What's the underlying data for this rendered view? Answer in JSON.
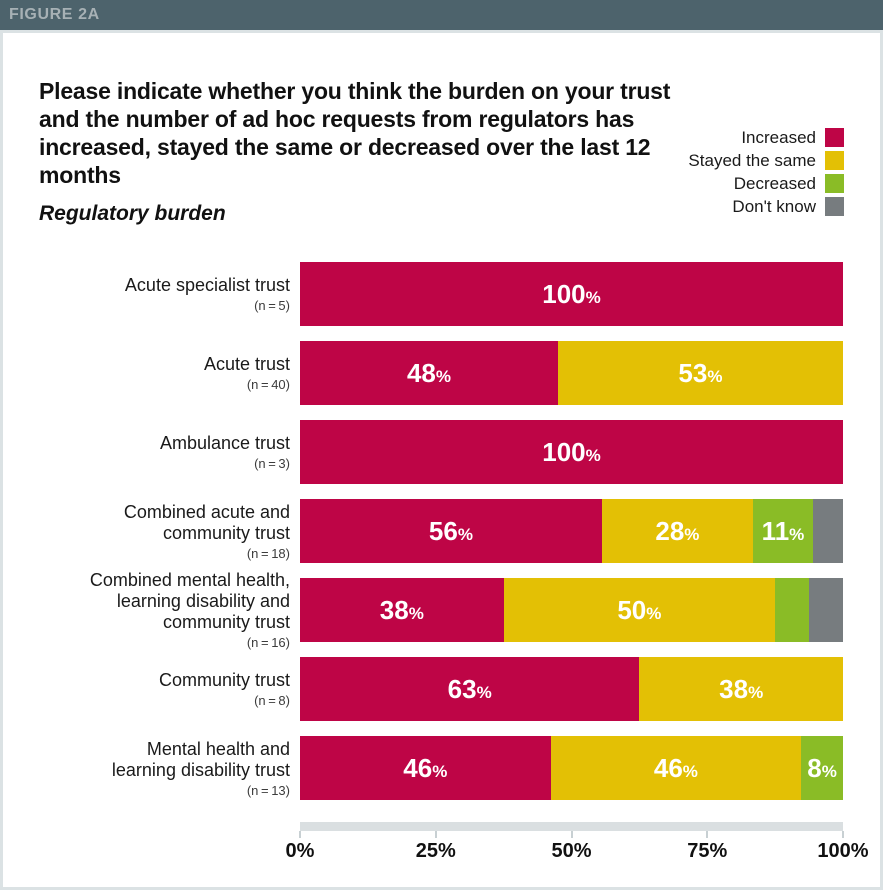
{
  "figure": {
    "label": "FIGURE 2A",
    "header_bg": "#4D636C",
    "border_color": "#DBE2E4"
  },
  "chart_data": {
    "type": "bar",
    "stacked": true,
    "orientation": "horizontal",
    "title": "Please indicate whether you think the burden on your trust and the number of ad hoc requests from regulators has increased, stayed the same or decreased over the last 12 months",
    "subtitle": "Regulatory burden",
    "legend_position": "top-right",
    "legend": [
      {
        "key": "increased",
        "label": "Increased"
      },
      {
        "key": "stayed_the_same",
        "label": "Stayed the same"
      },
      {
        "key": "decreased",
        "label": "Decreased"
      },
      {
        "key": "dont_know",
        "label": "Don't know"
      }
    ],
    "colors": {
      "increased": "#BE0546",
      "stayed_the_same": "#E3C005",
      "decreased": "#8ABC26",
      "dont_know": "#777C7F"
    },
    "xlim": [
      0,
      100
    ],
    "x_tick_labels": [
      "0%",
      "25%",
      "50%",
      "75%",
      "100%"
    ],
    "x_tick_positions": [
      0,
      25,
      50,
      75,
      100
    ],
    "rows": [
      {
        "category": "Acute specialist trust",
        "label_lines": [
          "Acute specialist trust"
        ],
        "n": "(n = 5)",
        "segments": [
          {
            "key": "increased",
            "value": 100,
            "labeled": true,
            "width": 100
          }
        ]
      },
      {
        "category": "Acute trust",
        "label_lines": [
          "Acute trust"
        ],
        "n": "(n = 40)",
        "segments": [
          {
            "key": "increased",
            "value": 48,
            "labeled": true,
            "width": 47.5
          },
          {
            "key": "stayed_the_same",
            "value": 53,
            "labeled": true,
            "width": 52.5
          }
        ]
      },
      {
        "category": "Ambulance trust",
        "label_lines": [
          "Ambulance trust"
        ],
        "n": "(n = 3)",
        "segments": [
          {
            "key": "increased",
            "value": 100,
            "labeled": true,
            "width": 100
          }
        ]
      },
      {
        "category": "Combined acute and community trust",
        "label_lines": [
          "Combined acute and",
          "community trust"
        ],
        "n": "(n = 18)",
        "segments": [
          {
            "key": "increased",
            "value": 56,
            "labeled": true,
            "width": 55.6
          },
          {
            "key": "stayed_the_same",
            "value": 28,
            "labeled": true,
            "width": 27.8
          },
          {
            "key": "decreased",
            "value": 11,
            "labeled": true,
            "width": 11.1
          },
          {
            "key": "dont_know",
            "value": 6,
            "labeled": false,
            "width": 5.5
          }
        ]
      },
      {
        "category": "Combined mental health, learning disability and community trust",
        "label_lines": [
          "Combined mental health,",
          "learning disability and",
          "community trust"
        ],
        "n": "(n = 16)",
        "segments": [
          {
            "key": "increased",
            "value": 38,
            "labeled": true,
            "width": 37.5
          },
          {
            "key": "stayed_the_same",
            "value": 50,
            "labeled": true,
            "width": 50
          },
          {
            "key": "decreased",
            "value": 6,
            "labeled": false,
            "width": 6.25
          },
          {
            "key": "dont_know",
            "value": 6,
            "labeled": false,
            "width": 6.25
          }
        ]
      },
      {
        "category": "Community trust",
        "label_lines": [
          "Community trust"
        ],
        "n": "(n = 8)",
        "segments": [
          {
            "key": "increased",
            "value": 63,
            "labeled": true,
            "width": 62.5
          },
          {
            "key": "stayed_the_same",
            "value": 38,
            "labeled": true,
            "width": 37.5
          }
        ]
      },
      {
        "category": "Mental health and learning disability trust",
        "label_lines": [
          "Mental health and",
          "learning disability trust"
        ],
        "n": "(n = 13)",
        "segments": [
          {
            "key": "increased",
            "value": 46,
            "labeled": true,
            "width": 46.15
          },
          {
            "key": "stayed_the_same",
            "value": 46,
            "labeled": true,
            "width": 46.15
          },
          {
            "key": "decreased",
            "value": 8,
            "labeled": true,
            "width": 7.7
          }
        ]
      }
    ]
  }
}
